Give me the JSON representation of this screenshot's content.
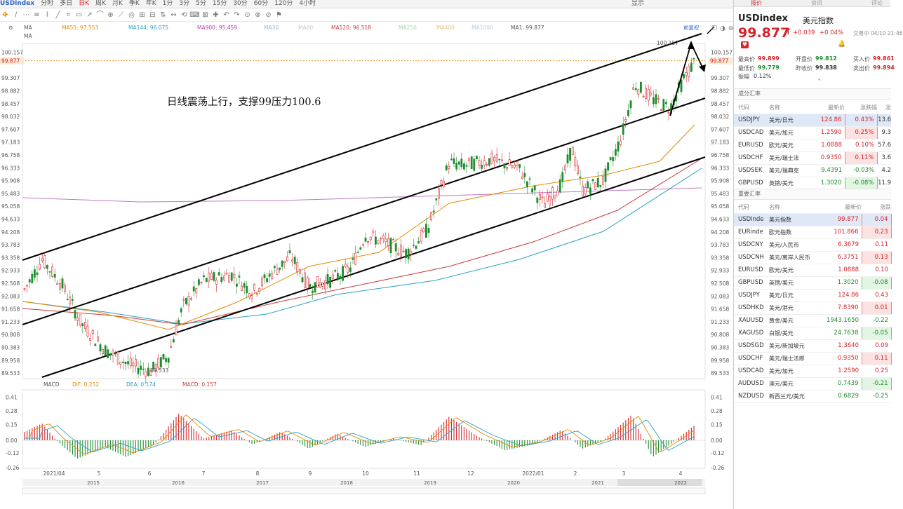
{
  "topbar": {
    "symbol": "USDindex",
    "periods": [
      "分时",
      "多日",
      "日K",
      "周K",
      "月K",
      "季K",
      "年K",
      "1分",
      "3分",
      "5分",
      "15分",
      "30分",
      "60分",
      "120分",
      "4小时"
    ],
    "active_period": "日K",
    "display": "显示"
  },
  "ma_bar": {
    "ma_label": "MA",
    "items": [
      {
        "label": "MA55: 97.553",
        "color": "#e58a00"
      },
      {
        "label": "MA144: 96.075",
        "color": "#2aa0c8"
      },
      {
        "label": "MA900: 95.459",
        "color": "#b040b0"
      },
      {
        "label": "MA30",
        "color": "#9ab6e0"
      },
      {
        "label": "MA60",
        "color": "#c8c8c8"
      },
      {
        "label": "MA120: 96.518",
        "color": "#c83838"
      },
      {
        "label": "MA250",
        "color": "#a8d8a8"
      },
      {
        "label": "MA400",
        "color": "#e8c080"
      },
      {
        "label": "MA1000",
        "color": "#b8c8e8"
      },
      {
        "label": "MA1: 99.877",
        "color": "#555555"
      }
    ],
    "second_label": "MA",
    "rights": "前复权"
  },
  "annotation": "日线震荡上行，支撑99压力100.6",
  "price_axis": [
    "100.157",
    "99.877",
    "99.307",
    "98.882",
    "98.457",
    "98.032",
    "97.607",
    "97.183",
    "96.758",
    "96.333",
    "95.908",
    "95.483",
    "95.058",
    "94.633",
    "94.208",
    "93.783",
    "93.358",
    "92.933",
    "92.508",
    "92.083",
    "91.658",
    "91.233",
    "90.808",
    "90.383",
    "89.958",
    "89.533"
  ],
  "current_price": "99.877",
  "high_marker": "100.157",
  "low_marker": "89.533",
  "macd_bar": {
    "label": "MACD",
    "dif": "DIF: 0.252",
    "dea": "DEA: 0.174",
    "macd": "MACD: 0.157"
  },
  "macd_axis": [
    "0.41",
    "0.28",
    "0.15",
    "0.00",
    "-0.12",
    "-0.26"
  ],
  "month_axis": [
    "2021/04",
    "5",
    "6",
    "7",
    "8",
    "9",
    "10",
    "11",
    "12",
    "2022/01",
    "2",
    "3",
    "4"
  ],
  "year_axis": [
    "2015",
    "2016",
    "2017",
    "2018",
    "2019",
    "2020",
    "2021",
    "2022"
  ],
  "right_panel": {
    "tabs": [
      "报价",
      "资讯",
      "评论"
    ],
    "symbol": "USDindex",
    "name": "美元指数",
    "price": "99.877",
    "change": "+0.039",
    "change_pct": "+0.04%",
    "trade_time": "交易中 04/10 21:46",
    "stats": [
      {
        "label": "最高价",
        "value": "99.899",
        "color": "red"
      },
      {
        "label": "开盘价",
        "value": "99.812",
        "color": "grn"
      },
      {
        "label": "买入价",
        "value": "99.861",
        "color": "red"
      },
      {
        "label": "最低价",
        "value": "99.779",
        "color": "grn"
      },
      {
        "label": "昨收价",
        "value": "99.838",
        "color": "black"
      },
      {
        "label": "卖出价",
        "value": "99.894",
        "color": "red"
      }
    ],
    "amplitude_label": "振幅",
    "amplitude": "0.12%",
    "section1_title": "成分汇率",
    "section1_headers": [
      "代码",
      "名称",
      "最新价",
      "涨跌幅",
      "涨"
    ],
    "section1_rows": [
      {
        "code": "USDJPY",
        "name": "美元/日元",
        "price": "124.86",
        "pct": "0.43%",
        "extra": "13.6",
        "dir": "up",
        "sel": true
      },
      {
        "code": "USDCAD",
        "name": "美元/加元",
        "price": "1.2590",
        "pct": "0.25%",
        "extra": "9.3",
        "dir": "up",
        "sel": false
      },
      {
        "code": "EURUSD",
        "name": "欧元/美元",
        "price": "1.0888",
        "pct": "0.10%",
        "extra": "57.6",
        "dir": "up",
        "sel": false
      },
      {
        "code": "USDCHF",
        "name": "美元/瑞士法",
        "price": "0.9350",
        "pct": "0.11%",
        "extra": "3.6",
        "dir": "up",
        "sel": false
      },
      {
        "code": "USDSEK",
        "name": "美元/瑞典克",
        "price": "9.4391",
        "pct": "-0.03%",
        "extra": "4.2",
        "dir": "down",
        "sel": false
      },
      {
        "code": "GBPUSD",
        "name": "英镑/美元",
        "price": "1.3020",
        "pct": "-0.08%",
        "extra": "11.9",
        "dir": "down",
        "sel": false
      }
    ],
    "section2_title": "重要汇率",
    "section2_headers": [
      "代码",
      "名称",
      "最新价",
      "涨跌"
    ],
    "section2_rows": [
      {
        "code": "USDinde",
        "name": "美元指数",
        "price": "99.877",
        "chg": "0.04",
        "dir": "up",
        "sel": true
      },
      {
        "code": "EURinde",
        "name": "欧元指数",
        "price": "101.866",
        "chg": "0.23",
        "dir": "up",
        "sel": false
      },
      {
        "code": "USDCNY",
        "name": "美元/人民币",
        "price": "6.3679",
        "chg": "0.11",
        "dir": "up",
        "sel": false
      },
      {
        "code": "USDCNH",
        "name": "美元/离岸人民币",
        "price": "6.3751",
        "chg": "0.13",
        "dir": "up",
        "sel": false
      },
      {
        "code": "EURUSD",
        "name": "欧元/美元",
        "price": "1.0888",
        "chg": "0.10",
        "dir": "up",
        "sel": false
      },
      {
        "code": "GBPUSD",
        "name": "英镑/美元",
        "price": "1.3020",
        "chg": "-0.08",
        "dir": "down",
        "sel": false
      },
      {
        "code": "USDJPY",
        "name": "美元/日元",
        "price": "124.86",
        "chg": "0.43",
        "dir": "up",
        "sel": false
      },
      {
        "code": "USDHKD",
        "name": "美元/港元",
        "price": "7.8390",
        "chg": "0.01",
        "dir": "up",
        "sel": false
      },
      {
        "code": "XAUUSD",
        "name": "黄金/美元",
        "price": "1943.1650",
        "chg": "-0.22",
        "dir": "down",
        "sel": false
      },
      {
        "code": "XAGUSD",
        "name": "白银/美元",
        "price": "24.7638",
        "chg": "-0.05",
        "dir": "down",
        "sel": false
      },
      {
        "code": "USDSGD",
        "name": "美元/新加坡元",
        "price": "1.3640",
        "chg": "0.09",
        "dir": "up",
        "sel": false
      },
      {
        "code": "USDCHF",
        "name": "美元/瑞士法郎",
        "price": "0.9350",
        "chg": "0.11",
        "dir": "up",
        "sel": false
      },
      {
        "code": "USDCAD",
        "name": "美元/加元",
        "price": "1.2590",
        "chg": "0.25",
        "dir": "up",
        "sel": false
      },
      {
        "code": "AUDUSD",
        "name": "澳元/美元",
        "price": "0.7439",
        "chg": "-0.21",
        "dir": "down",
        "sel": false
      },
      {
        "code": "NZDUSD",
        "name": "新西兰元/美元",
        "price": "0.6829",
        "chg": "-0.25",
        "dir": "down",
        "sel": false
      }
    ]
  }
}
